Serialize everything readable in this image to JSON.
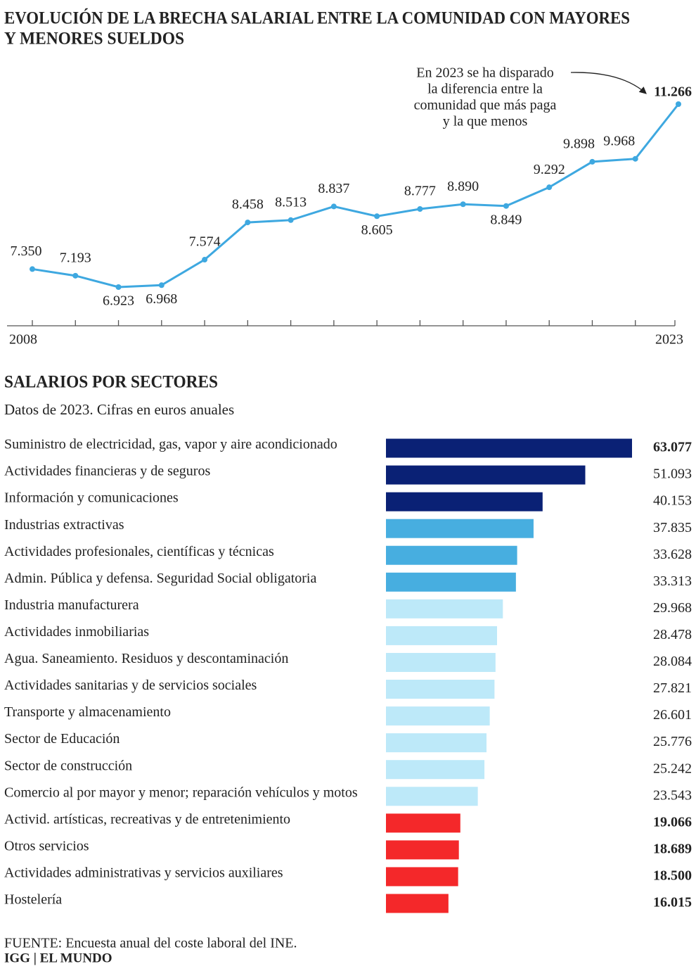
{
  "chart_data": [
    {
      "type": "line",
      "title": [
        "EVOLUCIÓN DE LA BRECHA SALARIAL ENTRE LA COMUNIDAD CON MAYORES",
        "Y MENORES SUELDOS"
      ],
      "categories": [
        "2008",
        null,
        null,
        null,
        null,
        null,
        null,
        null,
        null,
        null,
        null,
        null,
        null,
        null,
        null,
        "2023"
      ],
      "values": [
        7350,
        7193,
        6923,
        6968,
        7574,
        8458,
        8513,
        8837,
        8605,
        8777,
        8890,
        8849,
        9292,
        9898,
        9968,
        11266
      ],
      "value_labels": [
        "7.350",
        "7.193",
        "6.923",
        "6.968",
        "7.574",
        "8.458",
        "8.513",
        "8.837",
        "8.605",
        "8.777",
        "8.890",
        "8.849",
        "9.292",
        "9.898",
        "9.968",
        "11.266"
      ],
      "color": "#3ea8e0",
      "annotation": [
        "En 2023 se ha disparado",
        "la diferencia entre la",
        "comunidad que más paga",
        "y la que menos"
      ]
    },
    {
      "type": "hbar",
      "title": "SALARIOS POR SECTORES",
      "subtitle": "Datos de 2023. Cifras en euros anuales",
      "categories": [
        "Suministro de electricidad, gas, vapor y aire acondicionado",
        "Actividades financieras y de seguros",
        "Información y comunicaciones",
        "Industrias extractivas",
        "Actividades profesionales, científicas y técnicas",
        "Admin. Pública y defensa. Seguridad Social obligatoria",
        "Industria manufacturera",
        "Actividades inmobiliarias",
        "Agua. Saneamiento. Residuos y descontaminación",
        "Actividades sanitarias y de servicios sociales",
        "Transporte y almacenamiento",
        "Sector de Educación",
        "Sector de construcción",
        "Comercio al por mayor y menor; reparación vehículos y motos",
        "Activid. artísticas, recreativas y de entretenimiento",
        "Otros servicios",
        "Actividades administrativas y servicios auxiliares",
        "Hostelería"
      ],
      "values": [
        63077,
        51093,
        40153,
        37835,
        33628,
        33313,
        29968,
        28478,
        28084,
        27821,
        26601,
        25776,
        25242,
        23543,
        19066,
        18689,
        18500,
        16015
      ],
      "value_labels": [
        "63.077",
        "51.093",
        "40.153",
        "37.835",
        "33.628",
        "33.313",
        "29.968",
        "28.478",
        "28.084",
        "27.821",
        "26.601",
        "25.776",
        "25.242",
        "23.543",
        "19.066",
        "18.689",
        "18.500",
        "16.015"
      ],
      "colors": [
        "#0a2175",
        "#0a2175",
        "#0a2175",
        "#47aee0",
        "#47aee0",
        "#47aee0",
        "#bde9f9",
        "#bde9f9",
        "#bde9f9",
        "#bde9f9",
        "#bde9f9",
        "#bde9f9",
        "#bde9f9",
        "#bde9f9",
        "#f4282a",
        "#f4282a",
        "#f4282a",
        "#f4282a"
      ]
    }
  ],
  "source": "FUENTE: Encuesta anual del coste laboral del INE.",
  "credit": "IGG | EL MUNDO"
}
